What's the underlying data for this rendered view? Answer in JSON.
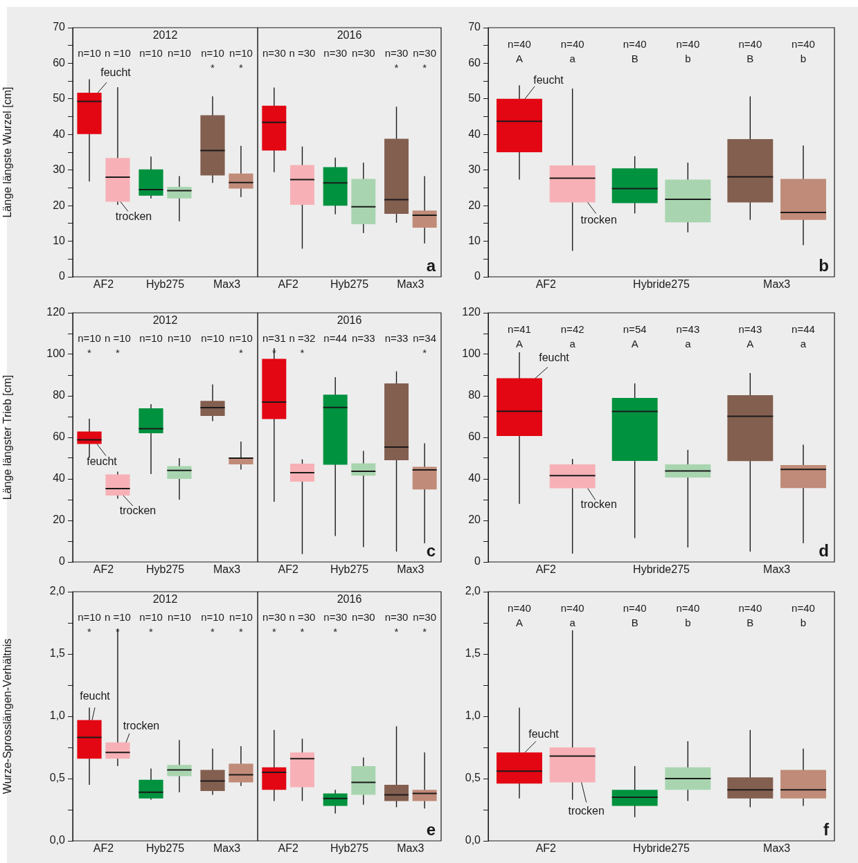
{
  "chart_data": [
    {
      "type": "box",
      "title": "2012",
      "ylabel": "Länge längste Wurzel [cm]",
      "categories": [
        "AF2",
        "Hyb275",
        "Max3"
      ],
      "ylim": [
        0,
        70
      ],
      "yticks": [
        0,
        {
          "value": 5,
          "label": null
        },
        10,
        {
          "value": 15,
          "label": null
        },
        20,
        {
          "value": 25,
          "label": null
        },
        30,
        {
          "value": 35,
          "label": null
        },
        40,
        {
          "value": 45,
          "label": null
        },
        50,
        {
          "value": 55,
          "label": null
        },
        60,
        {
          "value": 65,
          "label": null
        },
        70
      ],
      "series": [
        {
          "name": "feucht",
          "colors": [
            "#e30613",
            "#00923f",
            "#835f50"
          ],
          "value_labels": [
            "n=10",
            "n=10",
            "n=10\n*"
          ],
          "boxes": [
            {
              "low": 26.8,
              "q1": 40.1,
              "median": 49.3,
              "q3": 51.7,
              "high": 55.5
            },
            {
              "low": 22,
              "q1": 22.8,
              "median": 24.5,
              "q3": 30.2,
              "high": 33.8
            },
            {
              "low": 26.4,
              "q1": 28.5,
              "median": 35.5,
              "q3": 45.4,
              "high": 50.7
            }
          ]
        },
        {
          "name": "trocken",
          "colors": [
            "#f7b1b6",
            "#a8d5af",
            "#c08b78"
          ],
          "value_labels": [
            "n =10",
            "n=10",
            "n=10\n*"
          ],
          "boxes": [
            {
              "low": 20.2,
              "q1": 21.1,
              "median": 28,
              "q3": 33.4,
              "high": 53.3
            },
            {
              "low": 15.6,
              "q1": 22,
              "median": 24.2,
              "q3": 25.3,
              "high": 28.3
            },
            {
              "low": 22.4,
              "q1": 24.8,
              "median": 26.5,
              "q3": 29,
              "high": 36.8
            }
          ]
        }
      ]
    },
    {
      "type": "box",
      "title": "2016",
      "tick_labels": "x",
      "annotations": [
        "a"
      ],
      "categories": [
        "AF2",
        "Hyb275",
        "Max3"
      ],
      "ylim": [
        0,
        70
      ],
      "yticks": [
        0,
        10,
        20,
        30,
        40,
        50,
        60,
        70
      ],
      "series": [
        {
          "colors": [
            "#e30613",
            "#00923f",
            "#835f50"
          ],
          "value_labels": [
            "n=30",
            "n=30",
            "n=30\n*"
          ],
          "boxes": [
            {
              "low": 29.4,
              "q1": 35.5,
              "median": 43.4,
              "q3": 48.1,
              "high": 53.2
            },
            {
              "low": 17.6,
              "q1": 20,
              "median": 26.4,
              "q3": 30.8,
              "high": 33.5
            },
            {
              "low": 15.2,
              "q1": 17.7,
              "median": 21.7,
              "q3": 38.8,
              "high": 47.8
            }
          ]
        },
        {
          "colors": [
            "#f7b1b6",
            "#a8d5af",
            "#c08b78"
          ],
          "value_labels": [
            "n =30",
            "n=30",
            "n=30\n*"
          ],
          "boxes": [
            {
              "low": 7.9,
              "q1": 20.2,
              "median": 27.3,
              "q3": 31.4,
              "high": 36.6
            },
            {
              "low": 12.3,
              "q1": 14.8,
              "median": 19.7,
              "q3": 27.5,
              "high": 32.1
            },
            {
              "low": 9.4,
              "q1": 13.8,
              "median": 17.3,
              "q3": 18.6,
              "high": 28.3
            }
          ]
        }
      ]
    },
    {
      "type": "box",
      "annotations": [
        "b"
      ],
      "categories": [
        "AF2",
        "Hybride275",
        "Max3"
      ],
      "ylim": [
        0,
        70
      ],
      "yticks": [
        0,
        {
          "value": 5,
          "label": null
        },
        10,
        {
          "value": 15,
          "label": null
        },
        20,
        {
          "value": 25,
          "label": null
        },
        30,
        {
          "value": 35,
          "label": null
        },
        40,
        {
          "value": 45,
          "label": null
        },
        50,
        {
          "value": 55,
          "label": null
        },
        60,
        {
          "value": 65,
          "label": null
        },
        70
      ],
      "series": [
        {
          "name": "feucht",
          "colors": [
            "#e30613",
            "#00923f",
            "#835f50"
          ],
          "value_labels": [
            "n=40\nA",
            "n=40\nB",
            "n=40\nB"
          ],
          "boxes": [
            {
              "low": 27.3,
              "q1": 35,
              "median": 43.7,
              "q3": 50,
              "high": 53.8
            },
            {
              "low": 17.8,
              "q1": 20.7,
              "median": 24.8,
              "q3": 30.5,
              "high": 33.9
            },
            {
              "low": 16,
              "q1": 20.9,
              "median": 28.1,
              "q3": 38.7,
              "high": 50.7
            }
          ]
        },
        {
          "name": "trocken",
          "colors": [
            "#f7b1b6",
            "#a8d5af",
            "#c08b78"
          ],
          "value_labels": [
            "n=40\na",
            "n=40\nb",
            "n=40\nb"
          ],
          "boxes": [
            {
              "low": 7.3,
              "q1": 20.9,
              "median": 27.7,
              "q3": 31.3,
              "high": 52.9
            },
            {
              "low": 12.5,
              "q1": 15.3,
              "median": 21.8,
              "q3": 27.3,
              "high": 32.1
            },
            {
              "low": 8.9,
              "q1": 16,
              "median": 18.1,
              "q3": 27.5,
              "high": 36.9
            }
          ]
        }
      ]
    },
    {
      "type": "box",
      "title": "2012",
      "ylabel": "Länge längster Trieb [cm]",
      "categories": [
        "AF2",
        "Hyb275",
        "Max3"
      ],
      "ylim": [
        0,
        120
      ],
      "yticks": [
        0,
        {
          "value": 10,
          "label": null
        },
        20,
        {
          "value": 30,
          "label": null
        },
        40,
        {
          "value": 50,
          "label": null
        },
        60,
        {
          "value": 70,
          "label": null
        },
        80,
        {
          "value": 90,
          "label": null
        },
        100,
        {
          "value": 110,
          "label": null
        },
        120
      ],
      "series": [
        {
          "name": "feucht",
          "colors": [
            "#e30613",
            "#00923f",
            "#835f50"
          ],
          "value_labels": [
            "n=10\n*",
            "n=10",
            "n=10"
          ],
          "boxes": [
            {
              "low": 50.5,
              "q1": 56.8,
              "median": 58.8,
              "q3": 62.8,
              "high": 69
            },
            {
              "low": 42.3,
              "q1": 62,
              "median": 64.2,
              "q3": 74,
              "high": 76
            },
            {
              "low": 67.8,
              "q1": 70.3,
              "median": 74.3,
              "q3": 77.6,
              "high": 85.5
            }
          ]
        },
        {
          "name": "trocken",
          "colors": [
            "#f7b1b6",
            "#a8d5af",
            "#c08b78"
          ],
          "value_labels": [
            "n =10\n*",
            "n=10",
            "n=10\n*"
          ],
          "boxes": [
            {
              "low": 30.5,
              "q1": 32,
              "median": 35.3,
              "q3": 42.2,
              "high": 43.5
            },
            {
              "low": 30,
              "q1": 40,
              "median": 44.1,
              "q3": 46.2,
              "high": 50
            },
            {
              "low": 44.5,
              "q1": 47,
              "median": 50,
              "q3": 50.3,
              "high": 58
            }
          ]
        }
      ]
    },
    {
      "type": "box",
      "title": "2016",
      "tick_labels": "x",
      "annotations": [
        "c"
      ],
      "categories": [
        "AF2",
        "Hyb275",
        "Max3"
      ],
      "ylim": [
        0,
        120
      ],
      "yticks": [
        0,
        20,
        40,
        60,
        80,
        100,
        120
      ],
      "series": [
        {
          "colors": [
            "#e30613",
            "#00923f",
            "#835f50"
          ],
          "value_labels": [
            "n=31\n*",
            "n=44",
            "n=33"
          ],
          "boxes": [
            {
              "low": 29,
              "q1": 68.8,
              "median": 77,
              "q3": 97.8,
              "high": 103
            },
            {
              "low": 12.5,
              "q1": 46.8,
              "median": 74.4,
              "q3": 80.6,
              "high": 89
            },
            {
              "low": 5,
              "q1": 49,
              "median": 55.3,
              "q3": 86,
              "high": 91.8
            }
          ]
        },
        {
          "colors": [
            "#f7b1b6",
            "#a8d5af",
            "#c08b78"
          ],
          "value_labels": [
            "n =32\n*",
            "n=33",
            "n=34\n*"
          ],
          "boxes": [
            {
              "low": 3.8,
              "q1": 38.7,
              "median": 43,
              "q3": 47.3,
              "high": 49.4
            },
            {
              "low": 7.2,
              "q1": 41.6,
              "median": 43.7,
              "q3": 47.5,
              "high": 53.5
            },
            {
              "low": 9,
              "q1": 34.9,
              "median": 44.3,
              "q3": 45.8,
              "high": 57.2
            }
          ]
        }
      ]
    },
    {
      "type": "box",
      "annotations": [
        "d"
      ],
      "categories": [
        "AF2",
        "Hybride275",
        "Max3"
      ],
      "ylim": [
        0,
        120
      ],
      "yticks": [
        0,
        {
          "value": 10,
          "label": null
        },
        20,
        {
          "value": 30,
          "label": null
        },
        40,
        {
          "value": 50,
          "label": null
        },
        60,
        {
          "value": 70,
          "label": null
        },
        80,
        {
          "value": 90,
          "label": null
        },
        100,
        {
          "value": 110,
          "label": null
        },
        120
      ],
      "series": [
        {
          "name": "feucht",
          "colors": [
            "#e30613",
            "#00923f",
            "#835f50"
          ],
          "value_labels": [
            "n=41\nA",
            "n=54\nA",
            "n=43\nA"
          ],
          "boxes": [
            {
              "low": 28,
              "q1": 60.7,
              "median": 72.6,
              "q3": 88.5,
              "high": 101
            },
            {
              "low": 11.5,
              "q1": 48.7,
              "median": 72.5,
              "q3": 79,
              "high": 86
            },
            {
              "low": 5,
              "q1": 48.6,
              "median": 70.2,
              "q3": 80.3,
              "high": 91
            }
          ]
        },
        {
          "name": "trocken",
          "colors": [
            "#f7b1b6",
            "#a8d5af",
            "#c08b78"
          ],
          "value_labels": [
            "n=42\na",
            "n=43\na",
            "n=44\na"
          ],
          "boxes": [
            {
              "low": 4,
              "q1": 35.5,
              "median": 41.6,
              "q3": 47,
              "high": 49.6
            },
            {
              "low": 7,
              "q1": 40.7,
              "median": 43.8,
              "q3": 47,
              "high": 54
            },
            {
              "low": 9,
              "q1": 35.6,
              "median": 44.6,
              "q3": 46.7,
              "high": 56.5
            }
          ]
        }
      ]
    },
    {
      "type": "box",
      "title": "2012",
      "ylabel": "Wurze-Sprosslängen-Verhältnis",
      "categories": [
        "AF2",
        "Hyb275",
        "Max3"
      ],
      "ylim": [
        0,
        2
      ],
      "yticks": [
        {
          "value": 0,
          "label": "0,0"
        },
        {
          "value": 0.25,
          "label": null
        },
        {
          "value": 0.5,
          "label": "0,5"
        },
        {
          "value": 0.75,
          "label": null
        },
        {
          "value": 1,
          "label": "1,0"
        },
        {
          "value": 1.25,
          "label": null
        },
        {
          "value": 1.5,
          "label": "1,5"
        },
        {
          "value": 1.75,
          "label": null
        },
        {
          "value": 2,
          "label": "2,0"
        }
      ],
      "series": [
        {
          "name": "feucht",
          "colors": [
            "#e30613",
            "#00923f",
            "#835f50"
          ],
          "value_labels": [
            "n=10\n*",
            "n=10\n*",
            "n=10\n*"
          ],
          "boxes": [
            {
              "low": 0.45,
              "q1": 0.66,
              "median": 0.83,
              "q3": 0.97,
              "high": 1.07
            },
            {
              "low": 0.33,
              "q1": 0.34,
              "median": 0.39,
              "q3": 0.49,
              "high": 0.58
            },
            {
              "low": 0.37,
              "q1": 0.4,
              "median": 0.48,
              "q3": 0.57,
              "high": 0.74
            }
          ]
        },
        {
          "name": "trocken",
          "colors": [
            "#f7b1b6",
            "#a8d5af",
            "#c08b78"
          ],
          "value_labels": [
            "n =10\n*",
            "n=10",
            "n=10\n*"
          ],
          "boxes": [
            {
              "low": 0.6,
              "q1": 0.66,
              "median": 0.71,
              "q3": 0.79,
              "high": 1.7
            },
            {
              "low": 0.39,
              "q1": 0.52,
              "median": 0.57,
              "q3": 0.61,
              "high": 0.81
            },
            {
              "low": 0.44,
              "q1": 0.47,
              "median": 0.53,
              "q3": 0.62,
              "high": 0.76
            }
          ]
        }
      ]
    },
    {
      "type": "box",
      "title": "2016",
      "tick_labels": "x",
      "annotations": [
        "e"
      ],
      "categories": [
        "AF2",
        "Hyb275",
        "Max3"
      ],
      "ylim": [
        0,
        2
      ],
      "yticks": [
        0,
        0.5,
        1,
        1.5,
        2
      ],
      "series": [
        {
          "colors": [
            "#e30613",
            "#00923f",
            "#835f50"
          ],
          "value_labels": [
            "n=30\n*",
            "n=30\n*",
            "n=30\n*"
          ],
          "boxes": [
            {
              "low": 0.32,
              "q1": 0.41,
              "median": 0.55,
              "q3": 0.59,
              "high": 0.89
            },
            {
              "low": 0.22,
              "q1": 0.28,
              "median": 0.34,
              "q3": 0.38,
              "high": 0.41
            },
            {
              "low": 0.27,
              "q1": 0.32,
              "median": 0.37,
              "q3": 0.45,
              "high": 0.92
            }
          ]
        },
        {
          "colors": [
            "#f7b1b6",
            "#a8d5af",
            "#c08b78"
          ],
          "value_labels": [
            "n =30\n*",
            "n=30",
            "n=30\n*"
          ],
          "boxes": [
            {
              "low": 0.32,
              "q1": 0.43,
              "median": 0.66,
              "q3": 0.71,
              "high": 0.82
            },
            {
              "low": 0.29,
              "q1": 0.37,
              "median": 0.47,
              "q3": 0.6,
              "high": 0.67
            },
            {
              "low": 0.26,
              "q1": 0.32,
              "median": 0.38,
              "q3": 0.41,
              "high": 0.71
            }
          ]
        }
      ]
    },
    {
      "type": "box",
      "annotations": [
        "f"
      ],
      "categories": [
        "AF2",
        "Hybride275",
        "Max3"
      ],
      "ylim": [
        0,
        2
      ],
      "yticks": [
        {
          "value": 0,
          "label": "0,0"
        },
        {
          "value": 0.25,
          "label": null
        },
        {
          "value": 0.5,
          "label": "0,5"
        },
        {
          "value": 0.75,
          "label": null
        },
        {
          "value": 1,
          "label": "1,0"
        },
        {
          "value": 1.25,
          "label": null
        },
        {
          "value": 1.5,
          "label": "1,5"
        },
        {
          "value": 1.75,
          "label": null
        },
        {
          "value": 2,
          "label": "2,0"
        }
      ],
      "series": [
        {
          "name": "feucht",
          "colors": [
            "#e30613",
            "#00923f",
            "#835f50"
          ],
          "value_labels": [
            "n=40\nA",
            "n=40\nB",
            "n=40\nB"
          ],
          "boxes": [
            {
              "low": 0.34,
              "q1": 0.46,
              "median": 0.56,
              "q3": 0.71,
              "high": 1.07
            },
            {
              "low": 0.19,
              "q1": 0.28,
              "median": 0.35,
              "q3": 0.41,
              "high": 0.6
            },
            {
              "low": 0.27,
              "q1": 0.34,
              "median": 0.41,
              "q3": 0.51,
              "high": 0.89
            }
          ]
        },
        {
          "name": "trocken",
          "colors": [
            "#f7b1b6",
            "#a8d5af",
            "#c08b78"
          ],
          "value_labels": [
            "n=40\na",
            "n=40\nb",
            "n=40\nb"
          ],
          "boxes": [
            {
              "low": 0.33,
              "q1": 0.47,
              "median": 0.68,
              "q3": 0.75,
              "high": 1.69
            },
            {
              "low": 0.32,
              "q1": 0.41,
              "median": 0.5,
              "q3": 0.59,
              "high": 0.8
            },
            {
              "low": 0.28,
              "q1": 0.34,
              "median": 0.41,
              "q3": 0.57,
              "high": 0.74
            }
          ]
        }
      ]
    }
  ]
}
